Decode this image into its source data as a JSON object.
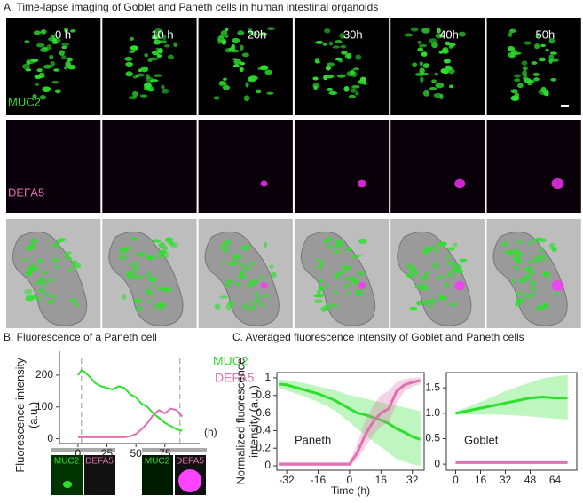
{
  "panel_a": {
    "title": "A. Time-lapse imaging of Goblet and Paneth cells in human intestinal organoids",
    "time_labels": [
      "0 h",
      "10 h",
      "20h",
      "30h",
      "40h",
      "50h"
    ],
    "channel_labels": [
      "MUC2",
      "DEFA5"
    ]
  },
  "panel_b_insets": [
    "MUC2",
    "DEFA5",
    "MUC2",
    "DEFA5"
  ],
  "chart_data": [
    {
      "type": "line",
      "title": "B. Fluorescence of a Paneth cell",
      "y_label": "Fluorescence intensity\n(a.u.)",
      "x_label": "(h)",
      "x": [
        0,
        3,
        6,
        10,
        15,
        20,
        25,
        30,
        35,
        40,
        45,
        50,
        55,
        60,
        65,
        70,
        75,
        80,
        85,
        90
      ],
      "series": [
        {
          "name": "MUC2",
          "color": "#2ee02e",
          "values": [
            200,
            215,
            210,
            195,
            175,
            165,
            160,
            155,
            165,
            160,
            140,
            130,
            110,
            100,
            80,
            65,
            50,
            40,
            30,
            25
          ]
        },
        {
          "name": "DEFA5",
          "color": "#e070b0",
          "values": [
            5,
            5,
            5,
            5,
            5,
            5,
            5,
            5,
            5,
            5,
            8,
            15,
            30,
            50,
            75,
            90,
            80,
            95,
            90,
            70
          ]
        }
      ],
      "xlim": [
        -16,
        105
      ],
      "ylim": [
        -15,
        275
      ],
      "xticks": [
        0,
        25,
        50,
        75
      ],
      "yticks": [
        0,
        100,
        200
      ]
    },
    {
      "type": "line",
      "title": "C. Averaged fluorescence intensity of Goblet and Paneth cells",
      "y_label": [
        "Normalized fluorescence",
        "intensity (a.u.)"
      ],
      "x_label": "Time (h)",
      "annotation": "Paneth",
      "x": [
        -36,
        -32,
        -24,
        -16,
        -8,
        0,
        4,
        8,
        12,
        16,
        20,
        24,
        28,
        32,
        36
      ],
      "series": [
        {
          "name": "MUC2",
          "color": "#2ee02e",
          "values": [
            0.93,
            0.92,
            0.87,
            0.82,
            0.75,
            0.65,
            0.6,
            0.58,
            0.55,
            0.52,
            0.48,
            0.42,
            0.38,
            0.33,
            0.3
          ],
          "lower": [
            0.88,
            0.86,
            0.8,
            0.73,
            0.64,
            0.5,
            0.42,
            0.35,
            0.28,
            0.22,
            0.15,
            0.08,
            0.05,
            0.02,
            0.0
          ],
          "upper": [
            0.98,
            0.97,
            0.94,
            0.9,
            0.86,
            0.8,
            0.78,
            0.76,
            0.74,
            0.72,
            0.7,
            0.68,
            0.66,
            0.64,
            0.62
          ]
        },
        {
          "name": "DEFA5",
          "color": "#e070b0",
          "values": [
            0.02,
            0.02,
            0.02,
            0.02,
            0.02,
            0.02,
            0.15,
            0.35,
            0.5,
            0.6,
            0.65,
            0.85,
            0.92,
            0.95,
            0.97
          ],
          "lower": [
            0.0,
            0.0,
            0.0,
            0.0,
            0.0,
            0.0,
            0.08,
            0.22,
            0.35,
            0.45,
            0.5,
            0.72,
            0.85,
            0.9,
            0.93
          ],
          "upper": [
            0.04,
            0.04,
            0.04,
            0.04,
            0.04,
            0.04,
            0.25,
            0.5,
            0.68,
            0.8,
            0.85,
            0.95,
            0.98,
            1.0,
            1.0
          ]
        }
      ],
      "xlim": [
        -37,
        38
      ],
      "ylim": [
        -0.05,
        1.06
      ],
      "xticks": [
        -32,
        -16,
        0,
        16,
        32
      ],
      "yticks": [
        0,
        0.2,
        0.4,
        0.6,
        0.8,
        1
      ]
    },
    {
      "type": "line",
      "annotation": "Goblet",
      "x": [
        0,
        8,
        16,
        24,
        32,
        40,
        48,
        56,
        64,
        72
      ],
      "series": [
        {
          "name": "MUC2",
          "color": "#2ee02e",
          "values": [
            1.0,
            1.05,
            1.1,
            1.15,
            1.2,
            1.25,
            1.3,
            1.32,
            1.3,
            1.3
          ],
          "lower": [
            0.97,
            0.98,
            0.98,
            0.98,
            0.97,
            0.96,
            0.94,
            0.92,
            0.9,
            0.88
          ],
          "upper": [
            1.03,
            1.12,
            1.22,
            1.32,
            1.43,
            1.52,
            1.6,
            1.68,
            1.72,
            1.75
          ]
        },
        {
          "name": "DEFA5",
          "color": "#e070b0",
          "values": [
            0.03,
            0.03,
            0.03,
            0.03,
            0.03,
            0.03,
            0.03,
            0.03,
            0.03,
            0.03
          ],
          "lower": [
            0.01,
            0.01,
            0.01,
            0.01,
            0.01,
            0.01,
            0.01,
            0.01,
            0.01,
            0.01
          ],
          "upper": [
            0.05,
            0.05,
            0.05,
            0.05,
            0.05,
            0.05,
            0.05,
            0.05,
            0.05,
            0.05
          ]
        }
      ],
      "xlim": [
        -6,
        78
      ],
      "ylim": [
        -0.12,
        1.8
      ],
      "xticks": [
        0,
        16,
        32,
        48,
        64
      ],
      "yticks": [
        0,
        {
          "value": 0.5,
          "label": "0.5"
        },
        {
          "value": 1,
          "label": "1.0"
        },
        1.5
      ]
    }
  ]
}
